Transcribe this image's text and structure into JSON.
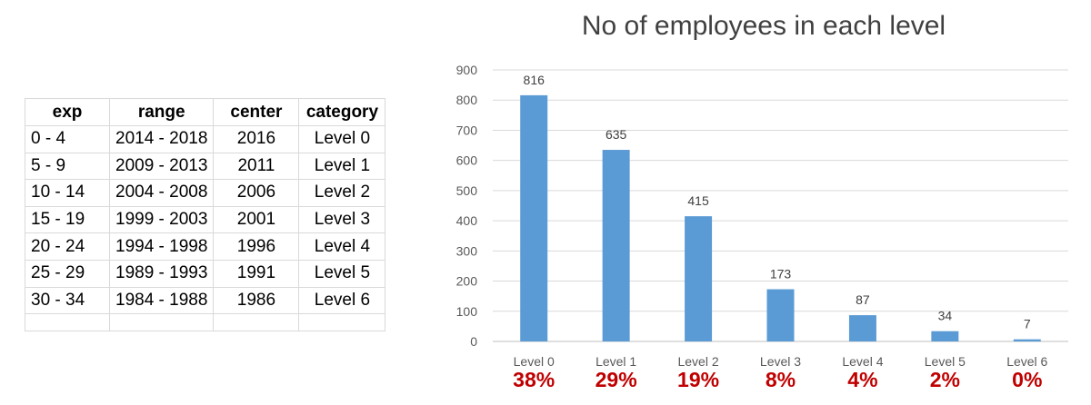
{
  "table": {
    "headers": [
      "exp",
      "range",
      "center",
      "category"
    ],
    "rows": [
      [
        "0 - 4",
        "2014 - 2018",
        "2016",
        "Level 0"
      ],
      [
        "5 - 9",
        "2009 - 2013",
        "2011",
        "Level 1"
      ],
      [
        "10 - 14",
        "2004 - 2008",
        "2006",
        "Level 2"
      ],
      [
        "15 - 19",
        "1999 - 2003",
        "2001",
        "Level 3"
      ],
      [
        "20 - 24",
        "1994 - 1998",
        "1996",
        "Level 4"
      ],
      [
        "25 - 29",
        "1989 - 1993",
        "1991",
        "Level 5"
      ],
      [
        "30 - 34",
        "1984 - 1988",
        "1986",
        "Level 6"
      ]
    ]
  },
  "chart_data": {
    "type": "bar",
    "title": "No of employees in each level",
    "categories": [
      "Level 0",
      "Level 1",
      "Level 2",
      "Level 3",
      "Level 4",
      "Level 5",
      "Level 6"
    ],
    "values": [
      816,
      635,
      415,
      173,
      87,
      34,
      7
    ],
    "percentages": [
      "38%",
      "29%",
      "19%",
      "8%",
      "4%",
      "2%",
      "0%"
    ],
    "ylim": [
      0,
      900
    ],
    "yticks": [
      0,
      100,
      200,
      300,
      400,
      500,
      600,
      700,
      800,
      900
    ],
    "grid": true,
    "bar_color": "#5b9bd5",
    "percent_color": "#c00000",
    "xlabel": "",
    "ylabel": ""
  }
}
